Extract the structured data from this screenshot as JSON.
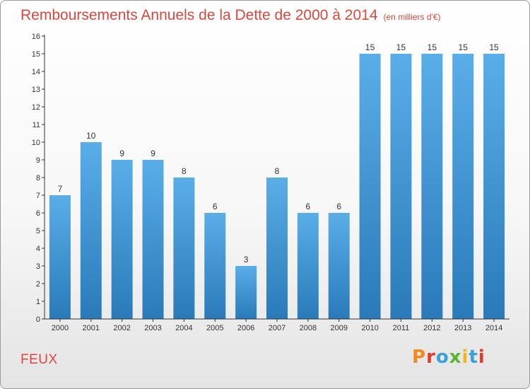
{
  "header": {
    "title": "Remboursements Annuels de la Dette de 2000 à 2014",
    "unit": "(en milliers d'€)"
  },
  "footer": {
    "commune": "FEUX",
    "logo": "Proxiti",
    "logo_colors": [
      "#f08a1c",
      "#e23a2d",
      "#3aa0dc",
      "#5cb531",
      "#f2b51a",
      "#3aa0dc",
      "#e23a2d"
    ]
  },
  "colors": {
    "bar_light": "#5aaee8",
    "bar_dark": "#2a7ab9",
    "title": "#d9473f",
    "axis": "#333333"
  },
  "chart_data": {
    "type": "bar",
    "title": "Remboursements Annuels de la Dette de 2000 à 2014",
    "xlabel": "",
    "ylabel": "",
    "ylim": [
      0,
      16
    ],
    "yticks": [
      0,
      1,
      2,
      3,
      4,
      5,
      6,
      7,
      8,
      9,
      10,
      11,
      12,
      13,
      14,
      15,
      16
    ],
    "grid": false,
    "categories": [
      "2000",
      "2001",
      "2002",
      "2003",
      "2004",
      "2005",
      "2006",
      "2007",
      "2008",
      "2009",
      "2010",
      "2011",
      "2012",
      "2013",
      "2014"
    ],
    "values": [
      7,
      10,
      9,
      9,
      8,
      6,
      3,
      8,
      6,
      6,
      15,
      15,
      15,
      15,
      15
    ]
  }
}
